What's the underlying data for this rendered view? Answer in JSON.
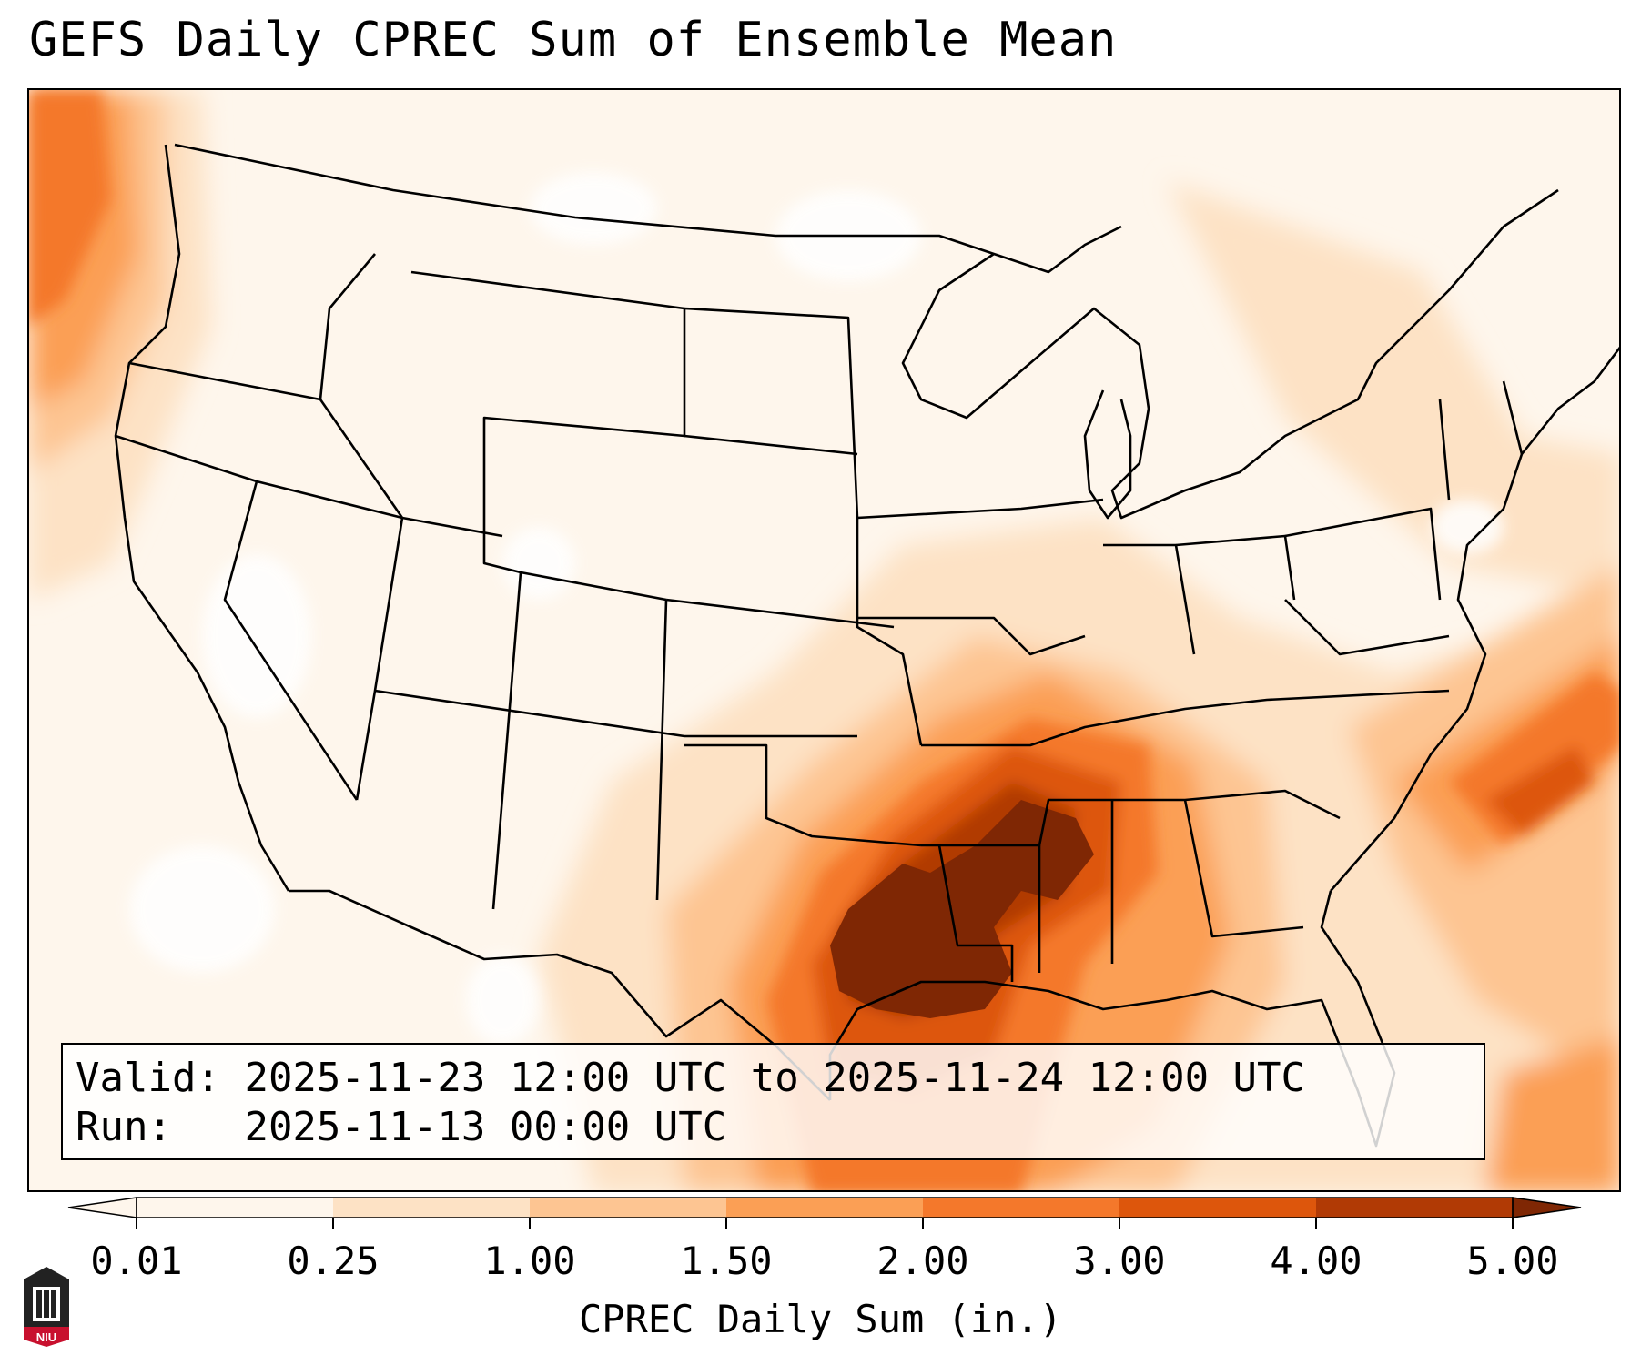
{
  "title": "GEFS Daily CPREC Sum of Ensemble Mean",
  "info": {
    "valid_label": "Valid:",
    "valid_value": "2025-11-23 12:00 UTC to 2025-11-24 12:00 UTC",
    "run_label": "Run:",
    "run_value": "2025-11-13 00:00 UTC"
  },
  "colorbar": {
    "label": "CPREC Daily Sum (in.)",
    "ticks": [
      "0.01",
      "0.25",
      "1.00",
      "1.50",
      "2.00",
      "3.00",
      "4.00",
      "5.00"
    ],
    "bins": [
      {
        "color": "#fef6ec"
      },
      {
        "color": "#fde2c5"
      },
      {
        "color": "#fdc592"
      },
      {
        "color": "#fb9f55"
      },
      {
        "color": "#f4782b"
      },
      {
        "color": "#dd560c"
      },
      {
        "color": "#b13a05"
      },
      {
        "color": "#7f2704"
      }
    ],
    "extend": "both"
  },
  "logo": {
    "text": "NIU",
    "color": "#c8102e"
  },
  "map": {
    "region": "Contiguous United States",
    "projection": "Lambert Conformal",
    "borders": "state and country boundaries",
    "heaviest_precip_region": "Texas / Louisiana / Mississippi / Alabama / northern Gulf of Mexico"
  }
}
